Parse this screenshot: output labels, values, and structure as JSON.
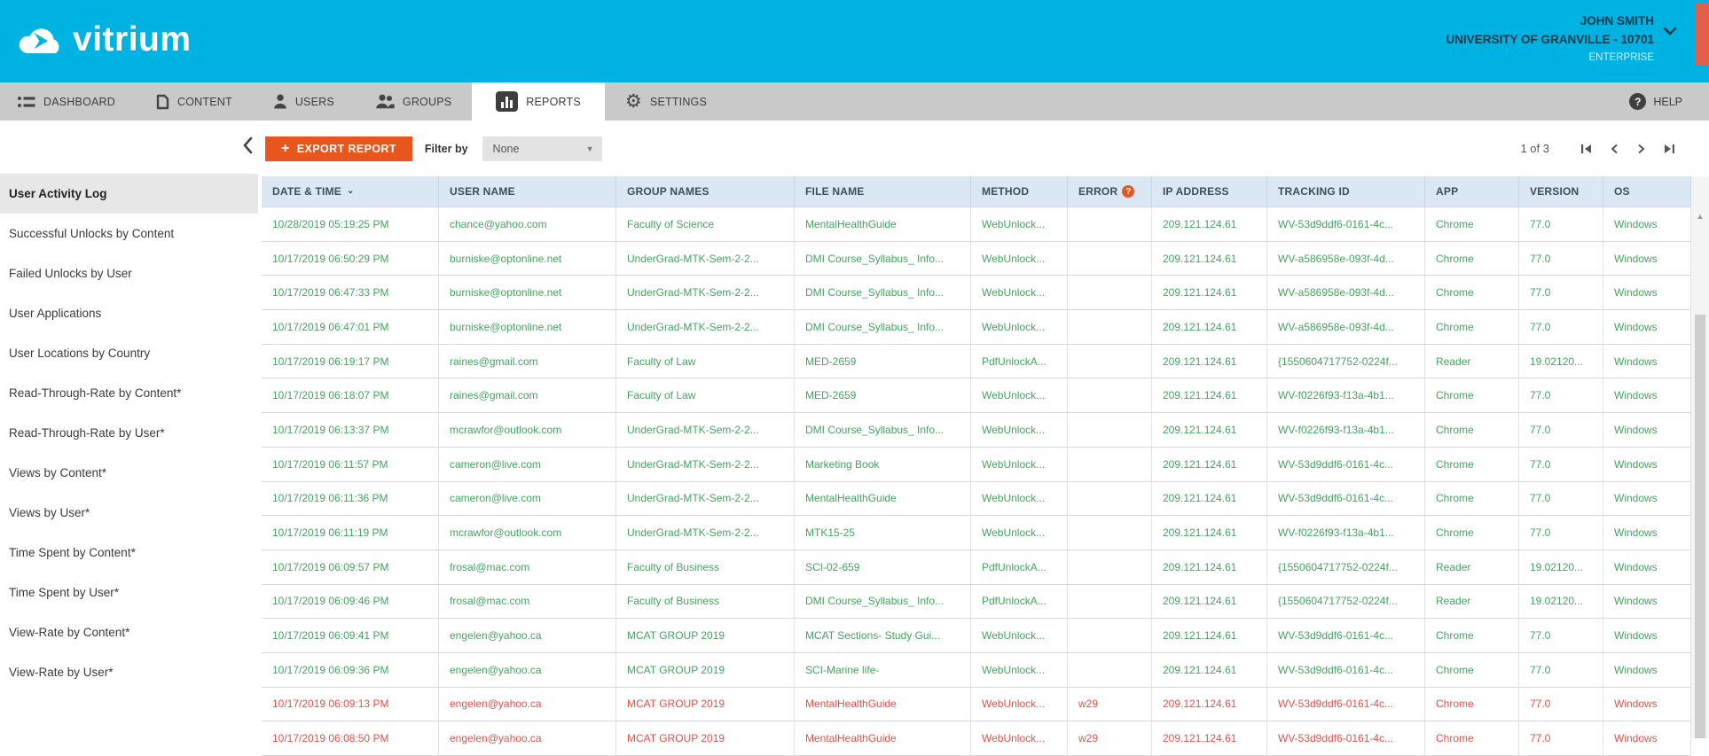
{
  "brand": {
    "logo_text": "vitrium",
    "colors": {
      "header_cyan": "#00b2e2",
      "accent_orange": "#e9561d",
      "row_green": "#43a35f",
      "row_red": "#e05149",
      "table_header_blue": "#dbe8f4"
    }
  },
  "account": {
    "name": "JOHN SMITH",
    "organization": "UNIVERSITY OF GRANVILLE - 10701",
    "plan": "ENTERPRISE"
  },
  "nav": {
    "items": [
      {
        "id": "dashboard",
        "label": "DASHBOARD"
      },
      {
        "id": "content",
        "label": "CONTENT"
      },
      {
        "id": "users",
        "label": "USERS"
      },
      {
        "id": "groups",
        "label": "GROUPS"
      },
      {
        "id": "reports",
        "label": "REPORTS",
        "active": true
      },
      {
        "id": "settings",
        "label": "SETTINGS"
      }
    ],
    "help_label": "HELP"
  },
  "sidebar": {
    "active_index": 0,
    "items": [
      "User Activity Log",
      "Successful Unlocks by Content",
      "Failed Unlocks by User",
      "User Applications",
      "User Locations by Country",
      "Read-Through-Rate by Content*",
      "Read-Through-Rate by User*",
      "Views by Content*",
      "Views by User*",
      "Time Spent by Content*",
      "Time Spent by User*",
      "View-Rate by Content*",
      "View-Rate by User*"
    ]
  },
  "toolbar": {
    "export_label": "EXPORT REPORT",
    "filter_label": "Filter by",
    "filter_value": "None",
    "page_text": "1 of 3"
  },
  "table": {
    "columns": [
      "DATE & TIME",
      "USER NAME",
      "GROUP NAMES",
      "FILE NAME",
      "METHOD",
      "ERROR",
      "IP ADDRESS",
      "TRACKING ID",
      "APP",
      "VERSION",
      "OS"
    ],
    "sorted_column": "DATE & TIME",
    "rows": [
      {
        "status": "ok",
        "cells": [
          "10/28/2019 05:19:25 PM",
          "chance@yahoo.com",
          "Faculty of Science",
          "MentalHealthGuide",
          "WebUnlock...",
          "",
          "209.121.124.61",
          "WV-53d9ddf6-0161-4c...",
          "Chrome",
          "77.0",
          "Windows"
        ]
      },
      {
        "status": "ok",
        "cells": [
          "10/17/2019 06:50:29 PM",
          "burniske@optonline.net",
          "UnderGrad-MTK-Sem-2-2...",
          "DMI Course_Syllabus_ Info...",
          "WebUnlock...",
          "",
          "209.121.124.61",
          "WV-a586958e-093f-4d...",
          "Chrome",
          "77.0",
          "Windows"
        ]
      },
      {
        "status": "ok",
        "cells": [
          "10/17/2019 06:47:33 PM",
          "burniske@optonline.net",
          "UnderGrad-MTK-Sem-2-2...",
          "DMI Course_Syllabus_ Info...",
          "WebUnlock...",
          "",
          "209.121.124.61",
          "WV-a586958e-093f-4d...",
          "Chrome",
          "77.0",
          "Windows"
        ]
      },
      {
        "status": "ok",
        "cells": [
          "10/17/2019 06:47:01 PM",
          "burniske@optonline.net",
          "UnderGrad-MTK-Sem-2-2...",
          "DMI Course_Syllabus_ Info...",
          "WebUnlock...",
          "",
          "209.121.124.61",
          "WV-a586958e-093f-4d...",
          "Chrome",
          "77.0",
          "Windows"
        ]
      },
      {
        "status": "ok",
        "cells": [
          "10/17/2019 06:19:17 PM",
          "raines@gmail.com",
          "Faculty of Law",
          "MED-2659",
          "PdfUnlockA...",
          "",
          "209.121.124.61",
          "{1550604717752-0224f...",
          "Reader",
          "19.02120...",
          "Windows"
        ]
      },
      {
        "status": "ok",
        "cells": [
          "10/17/2019 06:18:07 PM",
          "raines@gmail.com",
          "Faculty of Law",
          "MED-2659",
          "WebUnlock...",
          "",
          "209.121.124.61",
          "WV-f0226f93-f13a-4b1...",
          "Chrome",
          "77.0",
          "Windows"
        ]
      },
      {
        "status": "ok",
        "cells": [
          "10/17/2019 06:13:37 PM",
          "mcrawfor@outlook.com",
          "UnderGrad-MTK-Sem-2-2...",
          "DMI Course_Syllabus_ Info...",
          "WebUnlock...",
          "",
          "209.121.124.61",
          "WV-f0226f93-f13a-4b1...",
          "Chrome",
          "77.0",
          "Windows"
        ]
      },
      {
        "status": "ok",
        "cells": [
          "10/17/2019 06:11:57 PM",
          "cameron@live.com",
          "UnderGrad-MTK-Sem-2-2...",
          "Marketing Book",
          "WebUnlock...",
          "",
          "209.121.124.61",
          "WV-53d9ddf6-0161-4c...",
          "Chrome",
          "77.0",
          "Windows"
        ]
      },
      {
        "status": "ok",
        "cells": [
          "10/17/2019 06:11:36 PM",
          "cameron@live.com",
          "UnderGrad-MTK-Sem-2-2...",
          "MentalHealthGuide",
          "WebUnlock...",
          "",
          "209.121.124.61",
          "WV-53d9ddf6-0161-4c...",
          "Chrome",
          "77.0",
          "Windows"
        ]
      },
      {
        "status": "ok",
        "cells": [
          "10/17/2019 06:11:19 PM",
          "mcrawfor@outlook.com",
          "UnderGrad-MTK-Sem-2-2...",
          "MTK15-25",
          "WebUnlock...",
          "",
          "209.121.124.61",
          "WV-f0226f93-f13a-4b1...",
          "Chrome",
          "77.0",
          "Windows"
        ]
      },
      {
        "status": "ok",
        "cells": [
          "10/17/2019 06:09:57 PM",
          "frosal@mac.com",
          "Faculty of Business",
          "SCI-02-659",
          "PdfUnlockA...",
          "",
          "209.121.124.61",
          "{1550604717752-0224f...",
          "Reader",
          "19.02120...",
          "Windows"
        ]
      },
      {
        "status": "ok",
        "cells": [
          "10/17/2019 06:09:46 PM",
          "frosal@mac.com",
          "Faculty of Business",
          "DMI Course_Syllabus_ Info...",
          "PdfUnlockA...",
          "",
          "209.121.124.61",
          "{1550604717752-0224f...",
          "Reader",
          "19.02120...",
          "Windows"
        ]
      },
      {
        "status": "ok",
        "cells": [
          "10/17/2019 06:09:41 PM",
          "engelen@yahoo.ca",
          "MCAT GROUP 2019",
          "MCAT Sections- Study Gui...",
          "WebUnlock...",
          "",
          "209.121.124.61",
          "WV-53d9ddf6-0161-4c...",
          "Chrome",
          "77.0",
          "Windows"
        ]
      },
      {
        "status": "ok",
        "cells": [
          "10/17/2019 06:09:36 PM",
          "engelen@yahoo.ca",
          "MCAT GROUP 2019",
          "SCI-Marine life-",
          "WebUnlock...",
          "",
          "209.121.124.61",
          "WV-53d9ddf6-0161-4c...",
          "Chrome",
          "77.0",
          "Windows"
        ]
      },
      {
        "status": "err",
        "cells": [
          "10/17/2019 06:09:13 PM",
          "engelen@yahoo.ca",
          "MCAT GROUP 2019",
          "MentalHealthGuide",
          "WebUnlock...",
          "w29",
          "209.121.124.61",
          "WV-53d9ddf6-0161-4c...",
          "Chrome",
          "77.0",
          "Windows"
        ]
      },
      {
        "status": "err",
        "cells": [
          "10/17/2019 06:08:50 PM",
          "engelen@yahoo.ca",
          "MCAT GROUP 2019",
          "MentalHealthGuide",
          "WebUnlock...",
          "w29",
          "209.121.124.61",
          "WV-53d9ddf6-0161-4c...",
          "Chrome",
          "77.0",
          "Windows"
        ]
      }
    ]
  }
}
